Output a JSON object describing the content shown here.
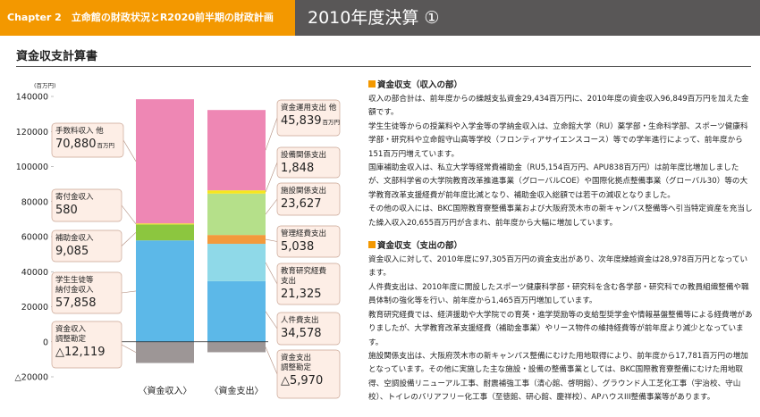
{
  "header": {
    "chapter": "Chapter 2　立命館の財政状況とR2020前半期の財政計画",
    "title": "2010年度決算 ①"
  },
  "section_title": "資金収支計算書",
  "chart_data": {
    "type": "stacked_bar",
    "y_unit": "(百万円)",
    "value_unit": "百万円",
    "categories": [
      "〈資金収入〉",
      "〈資金支出〉"
    ],
    "ylim": [
      -20000,
      140000
    ],
    "yticks": [
      {
        "value": -20000,
        "label": "△20000"
      },
      0,
      20000,
      40000,
      60000,
      80000,
      100000,
      120000,
      140000
    ],
    "series": [
      {
        "name": "学生生徒等\n納付金収入",
        "color": "#5cb8e8",
        "values": [
          57858,
          null
        ],
        "value_labels": [
          "57,858",
          null
        ]
      },
      {
        "name": "補助金収入",
        "color": "#8cc63f",
        "values": [
          9085,
          null
        ],
        "value_labels": [
          "9,085",
          null
        ]
      },
      {
        "name": "寄付金収入",
        "color": "#f5e61e",
        "values": [
          580,
          null
        ],
        "value_labels": [
          "580",
          null
        ]
      },
      {
        "name": "手数料収入 他",
        "color": "#ee87b4",
        "values": [
          70880,
          null
        ],
        "value_labels": [
          "70,880",
          null
        ]
      },
      {
        "name": "資金収入\n調整勘定",
        "color": "#9d9696",
        "values": [
          -12119,
          null
        ],
        "value_labels": [
          "△12,119",
          null
        ]
      },
      {
        "name": "人件費支出",
        "color": "#5cb8e8",
        "values": [
          null,
          34578
        ],
        "value_labels": [
          null,
          "34,578"
        ]
      },
      {
        "name": "教育研究経費\n支出",
        "color": "#8fd9e8",
        "values": [
          null,
          21325
        ],
        "value_labels": [
          null,
          "21,325"
        ]
      },
      {
        "name": "管理経費支出",
        "color": "#f39a3c",
        "values": [
          null,
          5038
        ],
        "value_labels": [
          null,
          "5,038"
        ]
      },
      {
        "name": "施設関係支出",
        "color": "#b5e08a",
        "values": [
          null,
          23627
        ],
        "value_labels": [
          null,
          "23,627"
        ]
      },
      {
        "name": "設備関係支出",
        "color": "#f5e61e",
        "values": [
          null,
          1848
        ],
        "value_labels": [
          null,
          "1,848"
        ]
      },
      {
        "name": "資金運用支出 他",
        "color": "#ee87b4",
        "values": [
          null,
          45839
        ],
        "value_labels": [
          null,
          "45,839"
        ]
      },
      {
        "name": "資金支出\n調整勘定",
        "color": "#9d9696",
        "values": [
          null,
          -5970
        ],
        "value_labels": [
          null,
          "△5,970"
        ]
      }
    ]
  },
  "text": [
    {
      "heading": "資金収支（収入の部）",
      "paragraphs": [
        "収入の部合計は、前年度からの繰越支払資金29,434百万円に、2010年度の資金収入96,849百万円を加えた金額です。",
        "学生生徒等からの授業料や入学金等の学納金収入は、立命館大学（RU）薬学部・生命科学部、スポーツ健康科学部・研究科や立命館守山高等学校（フロンティアサイエンスコース）等での学年進行によって、前年度から151百万円増えています。",
        "国庫補助金収入は、私立大学等経常費補助金（RU5,154百万円、APU838百万円）は前年度比増加しましたが、文部科学省の大学院教育改革推進事業（グローバルCOE）や国際化拠点整備事業（グローバル30）等の大学教育改革支援経費が前年度比減となり、補助金収入総額では若干の減収となりました。",
        "その他の収入には、BKC国際教育寮整備事業および大阪府茨木市の新キャンパス整備等へ引当特定資産を充当した繰入収入20,655百万円が含まれ、前年度から大幅に増加しています。"
      ]
    },
    {
      "heading": "資金収支（支出の部）",
      "paragraphs": [
        "資金収入に対して、2010年度に97,305百万円の資金支出があり、次年度繰越資金は28,978百万円となっています。",
        "人件費支出は、2010年度に開設したスポーツ健康科学部・研究科を含む各学部・研究科での教員組織整備や職員体制の強化等を行い、前年度から1,465百万円増加しています。",
        "教育研究経費では、経済援助や大学院での育英・進学奨励等の支給型奨学金や情報基盤整備等による経費増がありましたが、大学教育改革支援経費（補助金事業）やリース物件の維持経費等が前年度より減少となっています。",
        "施設関係支出は、大阪府茨木市の新キャンパス整備にむけた用地取得により、前年度から17,781百万円の増加となっています。その他に実施した主な施設・設備の整備事業としては、BKC国際教育寮整備にむけた用地取得、空調設備リニューアル工事、耐震補強工事（清心館、啓明館）、グラウンド人工芝化工事（宇治校、守山校）、トイレのバリアフリー化工事（至徳館、研心館、慶祥校）、APハウスIII整備事業等があります。"
      ]
    }
  ]
}
